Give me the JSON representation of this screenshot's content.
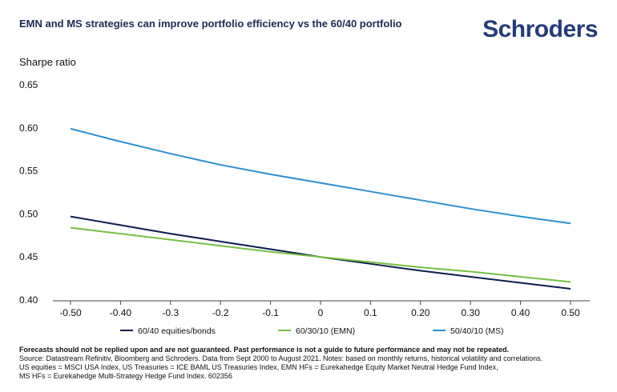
{
  "header": {
    "title": "EMN and MS strategies can improve portfolio efficiency vs the 60/40 portfolio",
    "logo_text": "Schroders"
  },
  "chart_data": {
    "type": "line",
    "ylabel": "Sharpe ratio",
    "x_tick_labels": [
      "-0.50",
      "-0.40",
      "-0.3",
      "-0.2",
      "-0.1",
      "0",
      "0.1",
      "0.20",
      "0.30",
      "0.40",
      "0.50"
    ],
    "x": [
      -0.5,
      -0.4,
      -0.3,
      -0.2,
      -0.1,
      0,
      0.1,
      0.2,
      0.3,
      0.4,
      0.5
    ],
    "y_ticks": [
      "0.65",
      "0.60",
      "0.55",
      "0.50",
      "0.45",
      "0.40"
    ],
    "ylim": [
      0.4,
      0.65
    ],
    "xlim": [
      -0.5,
      0.5
    ],
    "series": [
      {
        "name": "60/40 equities/bonds",
        "color": "#0c1d4f",
        "values": [
          0.497,
          0.487,
          0.477,
          0.468,
          0.459,
          0.45,
          0.442,
          0.434,
          0.427,
          0.42,
          0.413
        ]
      },
      {
        "name": "60/30/10 (EMN)",
        "color": "#74c043",
        "values": [
          0.484,
          0.477,
          0.47,
          0.463,
          0.456,
          0.45,
          0.444,
          0.438,
          0.433,
          0.427,
          0.421
        ]
      },
      {
        "name": "50/40/10 (MS)",
        "color": "#2e8fd4",
        "values": [
          0.599,
          0.584,
          0.57,
          0.557,
          0.546,
          0.536,
          0.526,
          0.516,
          0.506,
          0.497,
          0.489
        ]
      }
    ]
  },
  "footer": {
    "disclaimer": "Forecasts should not be replied upon and are not guaranteed. Past performance is not a guide to future performance and may not be repeated.",
    "source_line1": "Source: Datastream Refinitiv, Bloomberg and Schroders. Data from Sept 2000 to August 2021. Notes: based on monthly returns, historical volatility and correlations.",
    "source_line2": "US equities = MSCI USA Index, US Treasuries = ICE BAML US Treasuries Index, EMN HFs = Eurekahedge Equity Market Neutral Hedge Fund Index,",
    "source_line3": "MS HFs = Eurekahedge Multi-Strategy Hedge Fund Index. 602356"
  }
}
